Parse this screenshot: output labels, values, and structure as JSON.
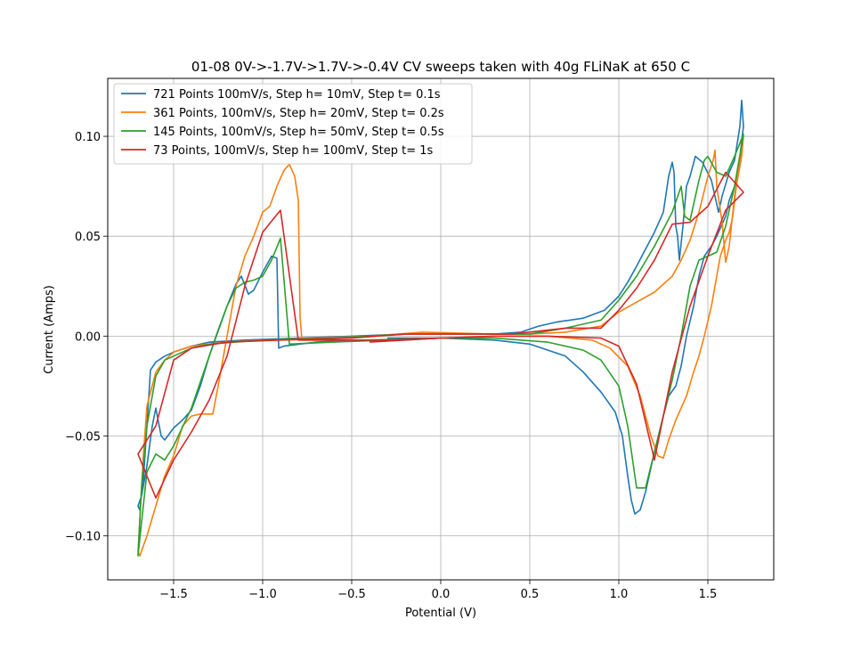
{
  "chart_data": {
    "type": "line",
    "title": "01-08 0V->-1.7V->1.7V->-0.4V CV sweeps taken with 40g FLiNaK at 650 C",
    "xlabel": "Potential (V)",
    "ylabel": "Current (Amps)",
    "xlim": [
      -1.87,
      1.87
    ],
    "ylim": [
      -0.122,
      0.129
    ],
    "x_ticks": [
      -1.5,
      -1.0,
      -0.5,
      0.0,
      0.5,
      1.0,
      1.5
    ],
    "x_tick_labels": [
      "−1.5",
      "−1.0",
      "−0.5",
      "0.0",
      "0.5",
      "1.0",
      "1.5"
    ],
    "y_ticks": [
      -0.1,
      -0.05,
      0.0,
      0.05,
      0.1
    ],
    "y_tick_labels": [
      "−0.10",
      "−0.05",
      "0.00",
      "0.05",
      "0.10"
    ],
    "grid": true,
    "legend_position": "top-left",
    "series": [
      {
        "name": "721 Points 100mV/s, Step h= 10mV, Step t= 0.1s",
        "color": "#1f77b4",
        "points": [
          [
            0,
            -0.001
          ],
          [
            -0.3,
            -0.002
          ],
          [
            -0.5,
            -0.002
          ],
          [
            -0.7,
            -0.003
          ],
          [
            -0.88,
            -0.005
          ],
          [
            -0.91,
            -0.006
          ],
          [
            -0.92,
            0.039
          ],
          [
            -0.95,
            0.04
          ],
          [
            -1.0,
            0.032
          ],
          [
            -1.05,
            0.023
          ],
          [
            -1.08,
            0.021
          ],
          [
            -1.12,
            0.03
          ],
          [
            -1.15,
            0.026
          ],
          [
            -1.2,
            0.015
          ],
          [
            -1.25,
            0.003
          ],
          [
            -1.3,
            -0.01
          ],
          [
            -1.35,
            -0.025
          ],
          [
            -1.4,
            -0.037
          ],
          [
            -1.45,
            -0.042
          ],
          [
            -1.5,
            -0.046
          ],
          [
            -1.55,
            -0.052
          ],
          [
            -1.57,
            -0.05
          ],
          [
            -1.6,
            -0.036
          ],
          [
            -1.62,
            -0.045
          ],
          [
            -1.65,
            -0.065
          ],
          [
            -1.68,
            -0.08
          ],
          [
            -1.7,
            -0.085
          ],
          [
            -1.69,
            -0.087
          ],
          [
            -1.67,
            -0.072
          ],
          [
            -1.65,
            -0.045
          ],
          [
            -1.63,
            -0.017
          ],
          [
            -1.6,
            -0.013
          ],
          [
            -1.55,
            -0.01
          ],
          [
            -1.5,
            -0.008
          ],
          [
            -1.4,
            -0.005
          ],
          [
            -1.3,
            -0.003
          ],
          [
            -1.1,
            -0.002
          ],
          [
            -0.8,
            -0.001
          ],
          [
            -0.5,
            0.0
          ],
          [
            -0.2,
            0.001
          ],
          [
            0.1,
            0.001
          ],
          [
            0.3,
            0.001
          ],
          [
            0.45,
            0.002
          ],
          [
            0.55,
            0.005
          ],
          [
            0.65,
            0.007
          ],
          [
            0.8,
            0.009
          ],
          [
            0.92,
            0.013
          ],
          [
            1.0,
            0.02
          ],
          [
            1.05,
            0.027
          ],
          [
            1.1,
            0.035
          ],
          [
            1.2,
            0.052
          ],
          [
            1.25,
            0.062
          ],
          [
            1.28,
            0.08
          ],
          [
            1.3,
            0.087
          ],
          [
            1.31,
            0.082
          ],
          [
            1.32,
            0.055
          ],
          [
            1.33,
            0.05
          ],
          [
            1.34,
            0.038
          ],
          [
            1.36,
            0.055
          ],
          [
            1.38,
            0.075
          ],
          [
            1.4,
            0.08
          ],
          [
            1.43,
            0.09
          ],
          [
            1.47,
            0.087
          ],
          [
            1.52,
            0.078
          ],
          [
            1.56,
            0.062
          ],
          [
            1.58,
            0.07
          ],
          [
            1.62,
            0.082
          ],
          [
            1.65,
            0.088
          ],
          [
            1.68,
            0.105
          ],
          [
            1.69,
            0.118
          ],
          [
            1.7,
            0.105
          ],
          [
            1.68,
            0.09
          ],
          [
            1.65,
            0.075
          ],
          [
            1.62,
            0.068
          ],
          [
            1.6,
            0.06
          ],
          [
            1.55,
            0.05
          ],
          [
            1.52,
            0.045
          ],
          [
            1.48,
            0.04
          ],
          [
            1.45,
            0.03
          ],
          [
            1.42,
            0.015
          ],
          [
            1.38,
            0.0
          ],
          [
            1.35,
            -0.015
          ],
          [
            1.32,
            -0.025
          ],
          [
            1.28,
            -0.03
          ],
          [
            1.25,
            -0.04
          ],
          [
            1.2,
            -0.058
          ],
          [
            1.15,
            -0.078
          ],
          [
            1.12,
            -0.087
          ],
          [
            1.09,
            -0.089
          ],
          [
            1.07,
            -0.082
          ],
          [
            1.05,
            -0.07
          ],
          [
            1.02,
            -0.05
          ],
          [
            0.98,
            -0.038
          ],
          [
            0.9,
            -0.028
          ],
          [
            0.8,
            -0.018
          ],
          [
            0.7,
            -0.01
          ],
          [
            0.5,
            -0.004
          ],
          [
            0.3,
            -0.002
          ],
          [
            0.0,
            -0.001
          ],
          [
            -0.3,
            -0.001
          ]
        ]
      },
      {
        "name": "361 Points, 100mV/s, Step h= 20mV, Step t= 0.2s",
        "color": "#ff7f0e",
        "points": [
          [
            0,
            -0.001
          ],
          [
            -0.3,
            -0.002
          ],
          [
            -0.6,
            -0.002
          ],
          [
            -0.78,
            -0.002
          ],
          [
            -0.79,
            0.01
          ],
          [
            -0.8,
            0.068
          ],
          [
            -0.82,
            0.08
          ],
          [
            -0.85,
            0.086
          ],
          [
            -0.88,
            0.083
          ],
          [
            -0.92,
            0.075
          ],
          [
            -0.96,
            0.065
          ],
          [
            -1.0,
            0.062
          ],
          [
            -1.05,
            0.05
          ],
          [
            -1.1,
            0.04
          ],
          [
            -1.15,
            0.025
          ],
          [
            -1.2,
            0.0
          ],
          [
            -1.25,
            -0.025
          ],
          [
            -1.28,
            -0.039
          ],
          [
            -1.35,
            -0.039
          ],
          [
            -1.4,
            -0.04
          ],
          [
            -1.45,
            -0.045
          ],
          [
            -1.5,
            -0.06
          ],
          [
            -1.55,
            -0.07
          ],
          [
            -1.6,
            -0.085
          ],
          [
            -1.65,
            -0.1
          ],
          [
            -1.69,
            -0.11
          ],
          [
            -1.7,
            -0.108
          ],
          [
            -1.67,
            -0.06
          ],
          [
            -1.65,
            -0.035
          ],
          [
            -1.6,
            -0.018
          ],
          [
            -1.55,
            -0.012
          ],
          [
            -1.5,
            -0.008
          ],
          [
            -1.4,
            -0.005
          ],
          [
            -1.2,
            -0.003
          ],
          [
            -1.0,
            -0.002
          ],
          [
            -0.7,
            -0.001
          ],
          [
            -0.4,
            0.0
          ],
          [
            -0.1,
            0.002
          ],
          [
            0.3,
            0.001
          ],
          [
            0.5,
            0.001
          ],
          [
            0.7,
            0.002
          ],
          [
            0.9,
            0.005
          ],
          [
            1.0,
            0.012
          ],
          [
            1.1,
            0.017
          ],
          [
            1.2,
            0.022
          ],
          [
            1.3,
            0.03
          ],
          [
            1.35,
            0.038
          ],
          [
            1.4,
            0.048
          ],
          [
            1.45,
            0.062
          ],
          [
            1.5,
            0.08
          ],
          [
            1.53,
            0.088
          ],
          [
            1.54,
            0.093
          ],
          [
            1.55,
            0.075
          ],
          [
            1.58,
            0.057
          ],
          [
            1.6,
            0.037
          ],
          [
            1.62,
            0.045
          ],
          [
            1.65,
            0.07
          ],
          [
            1.68,
            0.088
          ],
          [
            1.7,
            0.1
          ],
          [
            1.69,
            0.09
          ],
          [
            1.66,
            0.075
          ],
          [
            1.64,
            0.06
          ],
          [
            1.62,
            0.052
          ],
          [
            1.6,
            0.048
          ],
          [
            1.57,
            0.04
          ],
          [
            1.55,
            0.03
          ],
          [
            1.52,
            0.015
          ],
          [
            1.48,
            0.0
          ],
          [
            1.45,
            -0.01
          ],
          [
            1.42,
            -0.018
          ],
          [
            1.38,
            -0.03
          ],
          [
            1.32,
            -0.042
          ],
          [
            1.28,
            -0.052
          ],
          [
            1.25,
            -0.061
          ],
          [
            1.22,
            -0.06
          ],
          [
            1.18,
            -0.05
          ],
          [
            1.12,
            -0.03
          ],
          [
            1.05,
            -0.015
          ],
          [
            0.95,
            -0.006
          ],
          [
            0.85,
            -0.002
          ],
          [
            0.6,
            0.0
          ],
          [
            0.3,
            0.0
          ],
          [
            0.0,
            -0.001
          ],
          [
            -0.4,
            -0.002
          ]
        ]
      },
      {
        "name": "145 Points, 100mV/s, Step h= 50mV, Step t= 0.5s",
        "color": "#2ca02c",
        "points": [
          [
            0,
            -0.001
          ],
          [
            -0.3,
            -0.002
          ],
          [
            -0.6,
            -0.003
          ],
          [
            -0.85,
            -0.004
          ],
          [
            -0.9,
            0.049
          ],
          [
            -0.95,
            0.038
          ],
          [
            -1.0,
            0.03
          ],
          [
            -1.05,
            0.028
          ],
          [
            -1.1,
            0.027
          ],
          [
            -1.15,
            0.024
          ],
          [
            -1.2,
            0.015
          ],
          [
            -1.3,
            -0.01
          ],
          [
            -1.4,
            -0.036
          ],
          [
            -1.5,
            -0.055
          ],
          [
            -1.55,
            -0.062
          ],
          [
            -1.6,
            -0.059
          ],
          [
            -1.65,
            -0.068
          ],
          [
            -1.7,
            -0.11
          ],
          [
            -1.68,
            -0.075
          ],
          [
            -1.65,
            -0.045
          ],
          [
            -1.6,
            -0.02
          ],
          [
            -1.55,
            -0.012
          ],
          [
            -1.5,
            -0.01
          ],
          [
            -1.4,
            -0.006
          ],
          [
            -1.3,
            -0.004
          ],
          [
            -1.0,
            -0.002
          ],
          [
            -0.6,
            -0.001
          ],
          [
            -0.2,
            0.001
          ],
          [
            0.2,
            0.001
          ],
          [
            0.5,
            0.001
          ],
          [
            0.7,
            0.004
          ],
          [
            0.9,
            0.008
          ],
          [
            1.0,
            0.018
          ],
          [
            1.1,
            0.03
          ],
          [
            1.2,
            0.045
          ],
          [
            1.3,
            0.062
          ],
          [
            1.35,
            0.075
          ],
          [
            1.37,
            0.06
          ],
          [
            1.4,
            0.058
          ],
          [
            1.45,
            0.078
          ],
          [
            1.48,
            0.088
          ],
          [
            1.5,
            0.09
          ],
          [
            1.55,
            0.082
          ],
          [
            1.6,
            0.08
          ],
          [
            1.65,
            0.09
          ],
          [
            1.7,
            0.101
          ],
          [
            1.65,
            0.075
          ],
          [
            1.6,
            0.055
          ],
          [
            1.55,
            0.042
          ],
          [
            1.45,
            0.038
          ],
          [
            1.4,
            0.025
          ],
          [
            1.35,
            0.0
          ],
          [
            1.3,
            -0.022
          ],
          [
            1.25,
            -0.04
          ],
          [
            1.2,
            -0.058
          ],
          [
            1.15,
            -0.076
          ],
          [
            1.1,
            -0.076
          ],
          [
            1.05,
            -0.045
          ],
          [
            1.0,
            -0.025
          ],
          [
            0.9,
            -0.012
          ],
          [
            0.8,
            -0.007
          ],
          [
            0.6,
            -0.003
          ],
          [
            0.3,
            -0.001
          ],
          [
            0.0,
            -0.001
          ],
          [
            -0.4,
            -0.002
          ]
        ]
      },
      {
        "name": "73 Points, 100mV/s, Step h= 100mV, Step t= 1s",
        "color": "#d62728",
        "points": [
          [
            0,
            -0.001
          ],
          [
            -0.3,
            -0.002
          ],
          [
            -0.6,
            -0.002
          ],
          [
            -0.8,
            -0.002
          ],
          [
            -0.9,
            0.063
          ],
          [
            -1.0,
            0.052
          ],
          [
            -1.1,
            0.025
          ],
          [
            -1.2,
            -0.01
          ],
          [
            -1.3,
            -0.032
          ],
          [
            -1.4,
            -0.048
          ],
          [
            -1.5,
            -0.062
          ],
          [
            -1.6,
            -0.081
          ],
          [
            -1.7,
            -0.059
          ],
          [
            -1.6,
            -0.045
          ],
          [
            -1.5,
            -0.012
          ],
          [
            -1.4,
            -0.006
          ],
          [
            -1.2,
            -0.003
          ],
          [
            -0.9,
            -0.002
          ],
          [
            -0.5,
            -0.001
          ],
          [
            -0.2,
            0.001
          ],
          [
            0.1,
            0.001
          ],
          [
            0.4,
            0.001
          ],
          [
            0.7,
            0.004
          ],
          [
            0.9,
            0.004
          ],
          [
            1.0,
            0.013
          ],
          [
            1.1,
            0.024
          ],
          [
            1.2,
            0.038
          ],
          [
            1.3,
            0.056
          ],
          [
            1.4,
            0.057
          ],
          [
            1.5,
            0.065
          ],
          [
            1.6,
            0.082
          ],
          [
            1.7,
            0.072
          ],
          [
            1.6,
            0.063
          ],
          [
            1.5,
            0.04
          ],
          [
            1.4,
            0.015
          ],
          [
            1.3,
            -0.018
          ],
          [
            1.2,
            -0.062
          ],
          [
            1.1,
            -0.024
          ],
          [
            1.0,
            -0.005
          ],
          [
            0.9,
            -0.001
          ],
          [
            0.6,
            0.0
          ],
          [
            0.3,
            0.0
          ],
          [
            0.0,
            -0.001
          ],
          [
            -0.4,
            -0.003
          ]
        ]
      }
    ]
  }
}
